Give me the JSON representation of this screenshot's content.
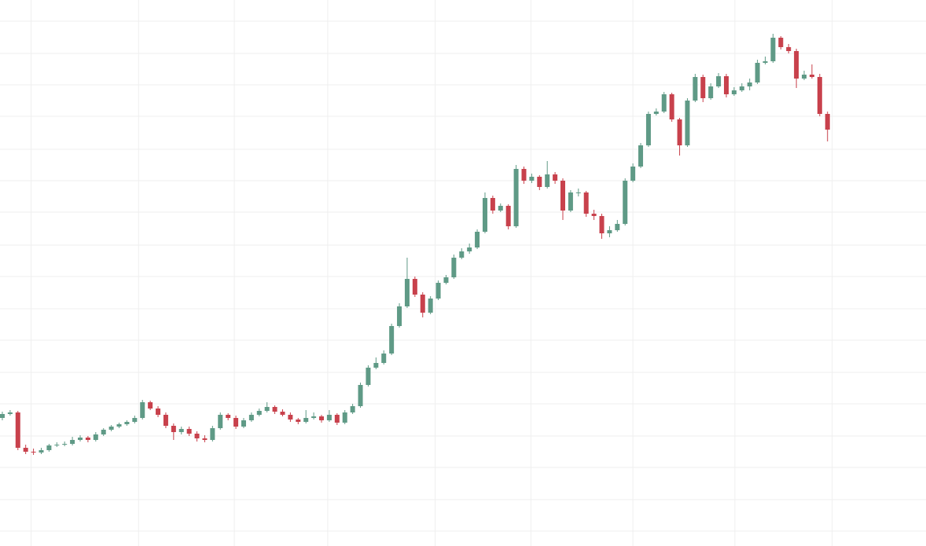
{
  "chart_data": {
    "type": "candlestick",
    "up_color": "#5f9a86",
    "down_color": "#c8414c",
    "grid_color": "#efefef",
    "grid": true,
    "xlim": [
      -0.3,
      118.65
    ],
    "ylim": [
      5,
      700
    ],
    "xticks": [
      3.7,
      17.5,
      29.8,
      41.8,
      55.6,
      67.9,
      81.0,
      94.1,
      106.6
    ],
    "yticks": [
      24,
      64,
      105,
      145,
      186,
      226,
      267,
      307,
      348,
      388,
      430,
      470,
      510,
      552,
      592,
      632,
      673
    ],
    "candles": [
      [
        168,
        176,
        165,
        173
      ],
      [
        173,
        178,
        171,
        175
      ],
      [
        175,
        177,
        127,
        130
      ],
      [
        130,
        134,
        122,
        125
      ],
      [
        125,
        129,
        121,
        124
      ],
      [
        124,
        130,
        122,
        127
      ],
      [
        127,
        135,
        125,
        133
      ],
      [
        133,
        137,
        131,
        134
      ],
      [
        134,
        138,
        132,
        135
      ],
      [
        135,
        144,
        133,
        140
      ],
      [
        140,
        146,
        138,
        143
      ],
      [
        143,
        145,
        137,
        140
      ],
      [
        140,
        150,
        138,
        147
      ],
      [
        147,
        155,
        145,
        153
      ],
      [
        153,
        159,
        151,
        157
      ],
      [
        157,
        162,
        155,
        160
      ],
      [
        160,
        165,
        158,
        163
      ],
      [
        163,
        171,
        161,
        168
      ],
      [
        168,
        191,
        166,
        188
      ],
      [
        188,
        190,
        178,
        180
      ],
      [
        180,
        183,
        169,
        172
      ],
      [
        172,
        175,
        155,
        158
      ],
      [
        158,
        161,
        140,
        150
      ],
      [
        150,
        157,
        147,
        154
      ],
      [
        154,
        157,
        145,
        148
      ],
      [
        148,
        151,
        138,
        142
      ],
      [
        142,
        146,
        137,
        140
      ],
      [
        140,
        158,
        138,
        155
      ],
      [
        155,
        175,
        153,
        172
      ],
      [
        172,
        174,
        165,
        168
      ],
      [
        168,
        171,
        154,
        157
      ],
      [
        157,
        168,
        155,
        165
      ],
      [
        165,
        175,
        163,
        172
      ],
      [
        172,
        180,
        170,
        177
      ],
      [
        177,
        188,
        175,
        182
      ],
      [
        182,
        184,
        173,
        176
      ],
      [
        176,
        179,
        170,
        172
      ],
      [
        172,
        175,
        163,
        166
      ],
      [
        166,
        168,
        160,
        163
      ],
      [
        163,
        178,
        161,
        168
      ],
      [
        168,
        175,
        166,
        170
      ],
      [
        170,
        172,
        162,
        165
      ],
      [
        165,
        178,
        163,
        172
      ],
      [
        172,
        174,
        159,
        162
      ],
      [
        162,
        178,
        160,
        175
      ],
      [
        175,
        186,
        173,
        183
      ],
      [
        183,
        213,
        181,
        210
      ],
      [
        210,
        235,
        208,
        232
      ],
      [
        232,
        245,
        230,
        238
      ],
      [
        238,
        254,
        236,
        250
      ],
      [
        250,
        288,
        248,
        285
      ],
      [
        285,
        314,
        283,
        310
      ],
      [
        310,
        372,
        308,
        345
      ],
      [
        345,
        348,
        322,
        325
      ],
      [
        325,
        328,
        296,
        302
      ],
      [
        302,
        323,
        300,
        320
      ],
      [
        320,
        343,
        318,
        340
      ],
      [
        340,
        350,
        338,
        347
      ],
      [
        347,
        376,
        345,
        372
      ],
      [
        372,
        384,
        370,
        380
      ],
      [
        380,
        390,
        377,
        385
      ],
      [
        385,
        408,
        383,
        405
      ],
      [
        405,
        455,
        403,
        448
      ],
      [
        448,
        451,
        428,
        432
      ],
      [
        432,
        441,
        430,
        438
      ],
      [
        438,
        440,
        408,
        412
      ],
      [
        412,
        490,
        410,
        485
      ],
      [
        485,
        488,
        466,
        470
      ],
      [
        470,
        479,
        467,
        475
      ],
      [
        475,
        477,
        458,
        462
      ],
      [
        462,
        495,
        460,
        478
      ],
      [
        478,
        481,
        466,
        470
      ],
      [
        470,
        473,
        420,
        432
      ],
      [
        432,
        458,
        430,
        455
      ],
      [
        455,
        460,
        450,
        455
      ],
      [
        455,
        457,
        424,
        428
      ],
      [
        428,
        433,
        420,
        425
      ],
      [
        425,
        428,
        396,
        403
      ],
      [
        403,
        412,
        398,
        407
      ],
      [
        407,
        420,
        405,
        415
      ],
      [
        415,
        473,
        413,
        470
      ],
      [
        470,
        492,
        468,
        488
      ],
      [
        488,
        518,
        486,
        515
      ],
      [
        515,
        558,
        513,
        555
      ],
      [
        555,
        562,
        553,
        558
      ],
      [
        558,
        583,
        556,
        580
      ],
      [
        580,
        582,
        545,
        548
      ],
      [
        548,
        550,
        502,
        515
      ],
      [
        515,
        575,
        513,
        572
      ],
      [
        572,
        606,
        570,
        602
      ],
      [
        602,
        605,
        570,
        575
      ],
      [
        575,
        594,
        573,
        590
      ],
      [
        590,
        607,
        588,
        603
      ],
      [
        603,
        606,
        576,
        580
      ],
      [
        580,
        589,
        578,
        585
      ],
      [
        585,
        594,
        583,
        590
      ],
      [
        590,
        600,
        585,
        595
      ],
      [
        595,
        624,
        593,
        620
      ],
      [
        620,
        628,
        618,
        622
      ],
      [
        622,
        657,
        620,
        652
      ],
      [
        652,
        654,
        637,
        640
      ],
      [
        640,
        644,
        632,
        635
      ],
      [
        635,
        638,
        588,
        600
      ],
      [
        600,
        610,
        598,
        605
      ],
      [
        605,
        618,
        600,
        602
      ],
      [
        602,
        606,
        552,
        555
      ],
      [
        555,
        558,
        520,
        535
      ]
    ]
  }
}
